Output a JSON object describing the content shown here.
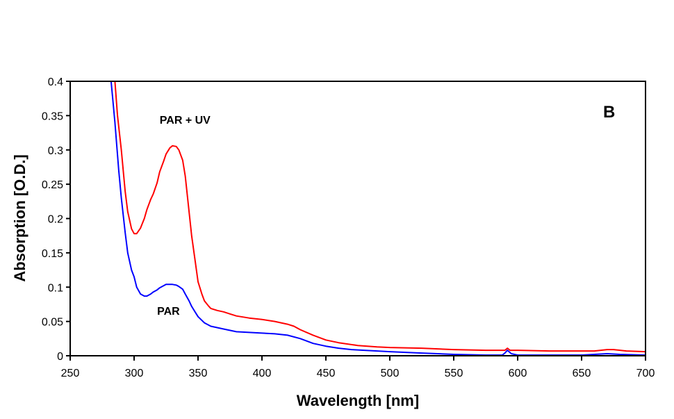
{
  "chart_data": {
    "type": "line",
    "title": "",
    "panel_label": "B",
    "xlabel": "Wavelength [nm]",
    "ylabel": "Absorption [O.D.]",
    "xlim": [
      250,
      700
    ],
    "ylim": [
      0,
      0.4
    ],
    "xticks": [
      250,
      300,
      350,
      400,
      450,
      500,
      550,
      600,
      650,
      700
    ],
    "xtick_labels": [
      "250",
      "300",
      "350",
      "400",
      "450",
      "500",
      "550",
      "600",
      "650",
      "700"
    ],
    "yticks": [
      0,
      0.05,
      0.1,
      0.15,
      0.2,
      0.25,
      0.3,
      0.35,
      0.4
    ],
    "ytick_labels": [
      "0",
      "0.05",
      "0.1",
      "0.15",
      "0.2",
      "0.25",
      "0.3",
      "0.35",
      "0.4"
    ],
    "grid": false,
    "legend": "none",
    "annotations": [
      {
        "text": "PAR + UV",
        "series": "PAR + UV",
        "at": [
          320,
          0.338
        ]
      },
      {
        "text": "PAR",
        "series": "PAR",
        "at": [
          318,
          0.06
        ]
      }
    ],
    "series": [
      {
        "name": "PAR + UV",
        "color": "#ff0000",
        "x": [
          285,
          287,
          290,
          293,
          295,
          298,
          300,
          302,
          305,
          308,
          310,
          313,
          315,
          318,
          320,
          323,
          325,
          328,
          330,
          333,
          335,
          338,
          340,
          343,
          345,
          348,
          350,
          353,
          355,
          358,
          360,
          365,
          370,
          375,
          380,
          390,
          400,
          410,
          420,
          425,
          430,
          440,
          450,
          460,
          475,
          490,
          500,
          525,
          550,
          575,
          590,
          592,
          594,
          600,
          625,
          635,
          650,
          660,
          670,
          675,
          685,
          700
        ],
        "y": [
          0.4,
          0.35,
          0.3,
          0.24,
          0.21,
          0.185,
          0.178,
          0.178,
          0.186,
          0.2,
          0.213,
          0.228,
          0.236,
          0.252,
          0.268,
          0.283,
          0.294,
          0.303,
          0.306,
          0.305,
          0.3,
          0.285,
          0.262,
          0.21,
          0.175,
          0.135,
          0.108,
          0.09,
          0.08,
          0.073,
          0.069,
          0.066,
          0.064,
          0.061,
          0.058,
          0.055,
          0.053,
          0.05,
          0.046,
          0.043,
          0.038,
          0.03,
          0.023,
          0.019,
          0.015,
          0.013,
          0.012,
          0.011,
          0.009,
          0.008,
          0.008,
          0.011,
          0.008,
          0.008,
          0.007,
          0.007,
          0.007,
          0.007,
          0.009,
          0.009,
          0.007,
          0.006
        ]
      },
      {
        "name": "PAR",
        "color": "#0000ff",
        "x": [
          282,
          285,
          288,
          290,
          293,
          295,
          298,
          300,
          302,
          305,
          308,
          310,
          313,
          315,
          318,
          320,
          323,
          325,
          328,
          330,
          333,
          335,
          338,
          340,
          343,
          345,
          348,
          350,
          355,
          360,
          370,
          380,
          390,
          400,
          410,
          420,
          430,
          440,
          450,
          460,
          470,
          480,
          490,
          500,
          525,
          550,
          575,
          588,
          590,
          592,
          595,
          600,
          625,
          650,
          660,
          670,
          680,
          700
        ],
        "y": [
          0.4,
          0.34,
          0.27,
          0.23,
          0.18,
          0.15,
          0.125,
          0.115,
          0.1,
          0.09,
          0.087,
          0.087,
          0.09,
          0.093,
          0.096,
          0.099,
          0.102,
          0.104,
          0.104,
          0.104,
          0.103,
          0.101,
          0.097,
          0.09,
          0.08,
          0.072,
          0.063,
          0.057,
          0.048,
          0.043,
          0.039,
          0.035,
          0.034,
          0.033,
          0.032,
          0.03,
          0.025,
          0.018,
          0.014,
          0.011,
          0.009,
          0.008,
          0.007,
          0.006,
          0.004,
          0.002,
          0.001,
          0.001,
          0.004,
          0.008,
          0.003,
          0.001,
          0.001,
          0.001,
          0.002,
          0.003,
          0.002,
          0.001
        ]
      }
    ]
  }
}
